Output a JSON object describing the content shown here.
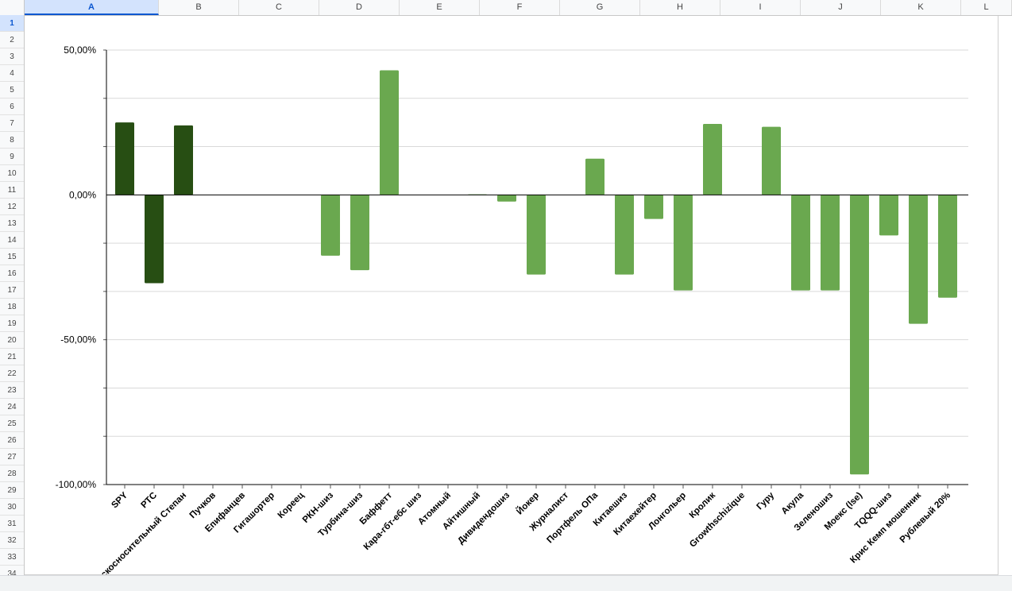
{
  "sheet": {
    "columns": [
      "A",
      "B",
      "C",
      "D",
      "E",
      "F",
      "G",
      "H",
      "I",
      "J",
      "K",
      "L"
    ],
    "selected_column": "A",
    "rows": [
      "1",
      "2",
      "3",
      "4",
      "5",
      "6",
      "7",
      "8",
      "9",
      "10",
      "11",
      "12",
      "13",
      "14",
      "15",
      "16",
      "17",
      "18",
      "19",
      "20",
      "21",
      "22",
      "23",
      "24",
      "25",
      "26",
      "27",
      "28",
      "29",
      "30",
      "31",
      "32",
      "33",
      "34"
    ],
    "selected_row": "1"
  },
  "colors": {
    "dark_bar": "#274e13",
    "light_bar": "#6aa84f",
    "grid": "#d9d9d9",
    "axis": "#000000"
  },
  "chart_data": {
    "type": "bar",
    "title": "",
    "xlabel": "",
    "ylabel": "",
    "ylim": [
      -100,
      50
    ],
    "grid": true,
    "y_ticks": [
      {
        "value": 50,
        "label": "50,00%"
      },
      {
        "value": 0,
        "label": "0,00%"
      },
      {
        "value": -50,
        "label": "-50,00%"
      },
      {
        "value": -100,
        "label": "-100,00%"
      }
    ],
    "categories": [
      "SPY",
      "РТС",
      "Бескосносительный Степан",
      "Пучков",
      "Епифанцев",
      "Гигашортер",
      "Кореец",
      "РКН-шиз",
      "Турбина-шиз",
      "Баффетт",
      "Кара-гбт-ебс шиз",
      "Атомный",
      "Айтишный",
      "Дивидендошиз",
      "Йокер",
      "Журналист",
      "Портфель ОПа",
      "Китаешиз",
      "Китаехейтер",
      "Лонгольер",
      "Кролик",
      "Growthschizique",
      "Гуру",
      "Акула",
      "Зеленошиз",
      "Моекс (lse)",
      "TQQQ-шиз",
      "Крис Кемп мошенник",
      "Рублевый 20%"
    ],
    "values": [
      25,
      -30.5,
      24,
      0,
      0,
      0,
      0,
      -21,
      -26,
      43,
      0,
      0,
      0.2,
      -2.3,
      -27.5,
      0,
      12.5,
      -27.5,
      -8.3,
      -33,
      24.5,
      0,
      23.5,
      -33,
      -33,
      -96.5,
      -14,
      -44.5,
      -35.5
    ],
    "bar_color_group": [
      "dark",
      "dark",
      "dark",
      "light",
      "light",
      "light",
      "light",
      "light",
      "light",
      "light",
      "light",
      "light",
      "light",
      "light",
      "light",
      "light",
      "light",
      "light",
      "light",
      "light",
      "light",
      "light",
      "light",
      "light",
      "light",
      "light",
      "light",
      "light",
      "light"
    ]
  }
}
